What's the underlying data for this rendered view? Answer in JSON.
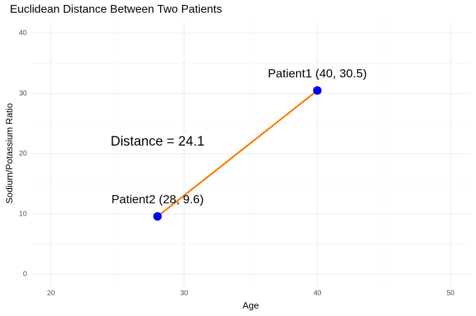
{
  "chart_data": {
    "type": "scatter",
    "title": "Euclidean Distance Between Two Patients",
    "xlabel": "Age",
    "ylabel": "Sodium/Potassium Ratio",
    "x": [
      40,
      28
    ],
    "values": [
      30.5,
      9.6
    ],
    "point_labels": [
      "Patient1 (40, 30.5)",
      "Patient2 (28, 9.6)"
    ],
    "annotation": "Distance = 24.1",
    "color": "#0000ff",
    "line_color": "#f5820f",
    "label_color": "#0000ff",
    "annotation_color": "#f5820f",
    "xlim": [
      18.5,
      51.5
    ],
    "xticks": [
      20,
      30,
      40,
      50
    ],
    "ylim": [
      -2,
      42
    ],
    "yticks": [
      0,
      10,
      20,
      30,
      40
    ],
    "grid": true
  }
}
